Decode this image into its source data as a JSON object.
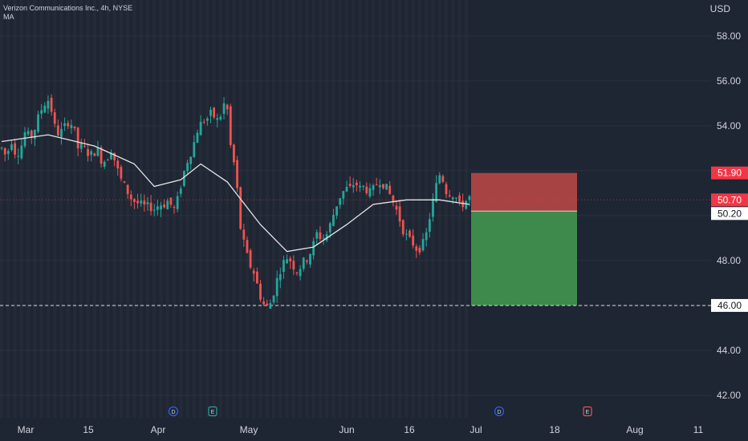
{
  "header": {
    "symbol_line": "Verizon Communications Inc., 4h, NYSE",
    "indicator": "MA",
    "currency": "USD"
  },
  "colors": {
    "background": "#1e2533",
    "up": "#26a69a",
    "down": "#ef5350",
    "ma": "#e6e6e6",
    "stop_zone": "#a84343",
    "target_zone": "#3d8a4c",
    "red_tag": "#f23645"
  },
  "chart_data": {
    "type": "candlestick",
    "ylim": [
      41,
      59.6
    ],
    "y_ticks": [
      42,
      44,
      46,
      48,
      50,
      52,
      54,
      56,
      58
    ],
    "x_ticks": [
      "Mar",
      "15",
      "Apr",
      "May",
      "Jun",
      "16",
      "Jul",
      "18",
      "Aug",
      "11"
    ],
    "price_tags": [
      {
        "label": "51.90",
        "value": 51.9,
        "style": "red"
      },
      {
        "label": "50.70",
        "value": 50.7,
        "style": "red"
      },
      {
        "label": "50.20",
        "value": 50.2,
        "style": "white"
      },
      {
        "label": "46.00",
        "value": 46.0,
        "style": "white"
      }
    ],
    "current_price": 50.7,
    "horizontal_line": 46.0,
    "position": {
      "entry": 50.2,
      "stop": 51.9,
      "target": 46.0
    },
    "events": [
      {
        "label": "D",
        "kind": "dividend"
      },
      {
        "label": "E",
        "kind": "earnings"
      },
      {
        "label": "D",
        "kind": "dividend"
      },
      {
        "label": "E",
        "kind": "earnings"
      }
    ],
    "price_path": [
      [
        53.0,
        52.6,
        53.4,
        52.7,
        53.0,
        53.8,
        53.4,
        53.9,
        54.6,
        55.0,
        55.2,
        54.0,
        53.6,
        53.9,
        54.2,
        54.0,
        53.0,
        53.1,
        52.8,
        52.7,
        53.0
      ],
      [
        52.4,
        52.5,
        53.0,
        52.2,
        51.6,
        51.2,
        50.8,
        50.6,
        50.5,
        50.4,
        50.4,
        50.3,
        50.5,
        50.5,
        50.7,
        50.2,
        50.8,
        51.8,
        52.5,
        53.0,
        53.8,
        54.2,
        54.3,
        54.6,
        54.2,
        54.5,
        55.3,
        53.0
      ],
      [
        52.0,
        49.5,
        48.5,
        47.8,
        47.4,
        46.5,
        46.0,
        45.9,
        46.6,
        47.4,
        47.9,
        48.2,
        47.8,
        47.5,
        47.9,
        48.1,
        48.5,
        49.2,
        49.0,
        49.1,
        49.7,
        50.4,
        50.9,
        51.2
      ],
      [
        51.2,
        51.5,
        51.2,
        51.3,
        51.0,
        51.2,
        51.6,
        51.4,
        51.1,
        50.6,
        50.1,
        49.4,
        49.0,
        48.8,
        48.5,
        48.6,
        49.2,
        50.3,
        51.3,
        52.0,
        51.1,
        51.0,
        50.9,
        50.4,
        50.6,
        50.8
      ]
    ],
    "moving_average": [
      {
        "bar": 0,
        "value": 53.3
      },
      {
        "bar": 14,
        "value": 53.6
      },
      {
        "bar": 28,
        "value": 53.1
      },
      {
        "bar": 40,
        "value": 52.3
      },
      {
        "bar": 46,
        "value": 51.3
      },
      {
        "bar": 54,
        "value": 51.6
      },
      {
        "bar": 60,
        "value": 52.3
      },
      {
        "bar": 68,
        "value": 51.5
      },
      {
        "bar": 78,
        "value": 49.6
      },
      {
        "bar": 86,
        "value": 48.4
      },
      {
        "bar": 94,
        "value": 48.6
      },
      {
        "bar": 104,
        "value": 49.6
      },
      {
        "bar": 112,
        "value": 50.5
      },
      {
        "bar": 122,
        "value": 50.7
      },
      {
        "bar": 132,
        "value": 50.7
      },
      {
        "bar": 141,
        "value": 50.5
      }
    ]
  }
}
